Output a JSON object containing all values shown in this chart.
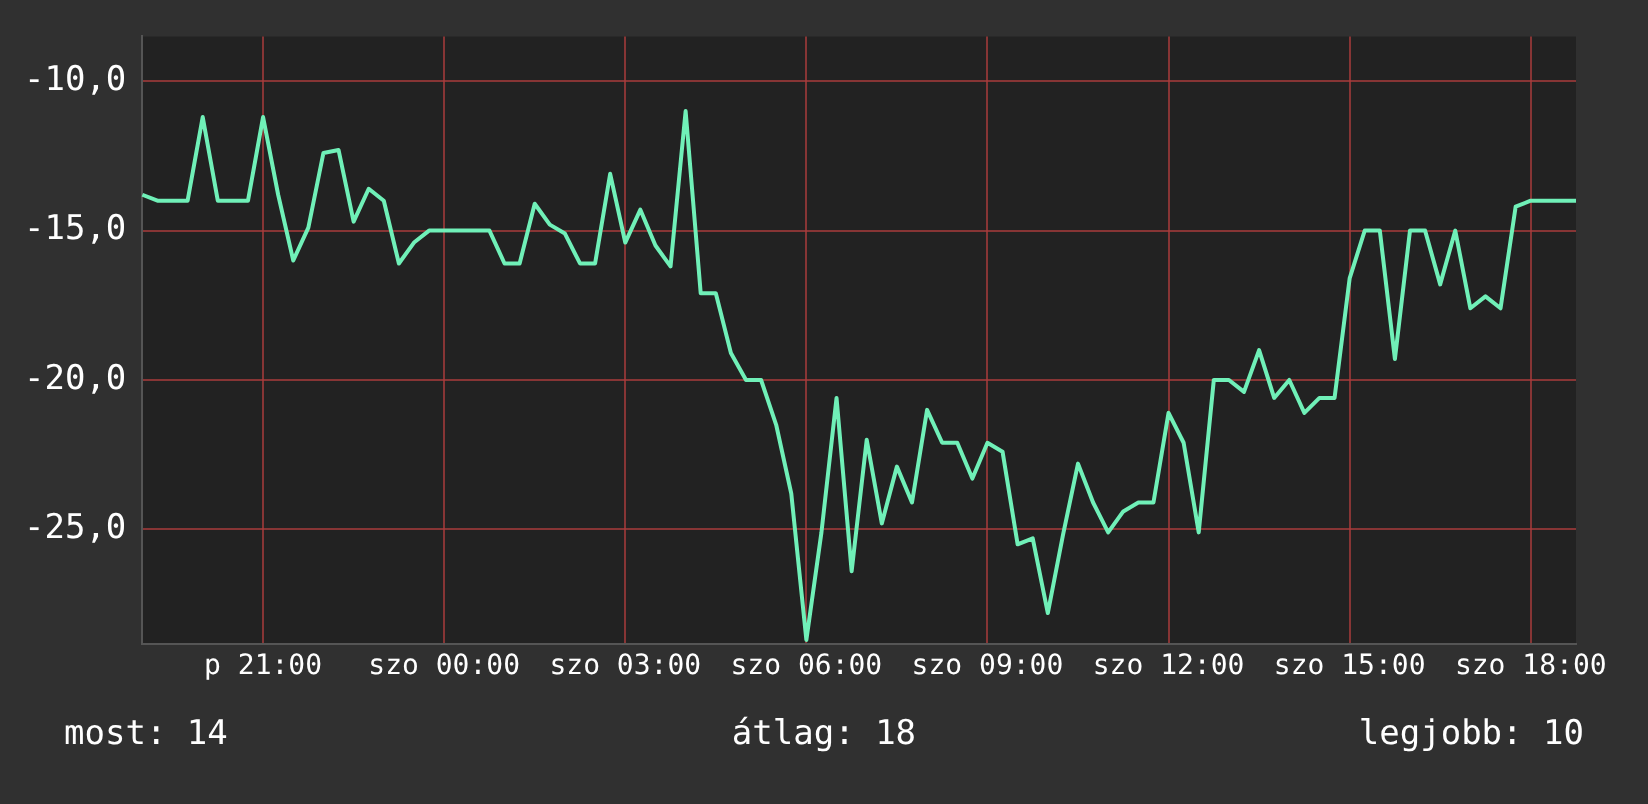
{
  "chart_data": {
    "type": "line",
    "grid": true,
    "legend": false,
    "marker": "none",
    "line_style": "solid",
    "categories": [
      null,
      null,
      null,
      null,
      null,
      null,
      null,
      null,
      "p 21:00",
      null,
      null,
      null,
      null,
      null,
      null,
      null,
      null,
      null,
      null,
      null,
      "szo 00:00",
      null,
      null,
      null,
      null,
      null,
      null,
      null,
      null,
      null,
      null,
      null,
      "szo 03:00",
      null,
      null,
      null,
      null,
      null,
      null,
      null,
      null,
      null,
      null,
      null,
      "szo 06:00",
      null,
      null,
      null,
      null,
      null,
      null,
      null,
      null,
      null,
      null,
      null,
      "szo 09:00",
      null,
      null,
      null,
      null,
      null,
      null,
      null,
      null,
      null,
      null,
      null,
      "szo 12:00",
      null,
      null,
      null,
      null,
      null,
      null,
      null,
      null,
      null,
      null,
      null,
      "szo 15:00",
      null,
      null,
      null,
      null,
      null,
      null,
      null,
      null,
      null,
      null,
      null,
      "szo 18:00",
      null,
      null,
      null
    ],
    "ylim": [
      -28.85,
      -8.5
    ],
    "yticks": [
      {
        "value": -10,
        "label": "-10,0"
      },
      {
        "value": -15,
        "label": "-15,0"
      },
      {
        "value": -20,
        "label": "-20,0"
      },
      {
        "value": -25,
        "label": "-25,0"
      }
    ],
    "annotations": [
      "most: 14",
      "átlag: 18",
      "legjobb: 10"
    ],
    "series": [
      {
        "color": "#70f0b8",
        "values": [
          -13.8,
          -14,
          -14,
          -14,
          -11.2,
          -14,
          -14,
          -14,
          -11.2,
          -13.8,
          -16,
          -14.9,
          -12.4,
          -12.3,
          -14.7,
          -13.6,
          -14,
          -16.1,
          -15.4,
          -15,
          -15,
          -15,
          -15,
          -15,
          -16.1,
          -16.1,
          -14.1,
          -14.8,
          -15.1,
          -16.1,
          -16.1,
          -13.1,
          -15.4,
          -14.3,
          -15.5,
          -16.2,
          -11,
          -17.1,
          -17.1,
          -19.1,
          -20,
          -20,
          -21.5,
          -23.8,
          -28.7,
          -25.1,
          -20.6,
          -26.4,
          -22,
          -24.8,
          -22.9,
          -24.1,
          -21,
          -22.1,
          -22.1,
          -23.3,
          -22.1,
          -22.4,
          -25.5,
          -25.3,
          -27.8,
          -25.2,
          -22.8,
          -24.1,
          -25.1,
          -24.4,
          -24.1,
          -24.1,
          -21.1,
          -22.1,
          -25.1,
          -20,
          -20,
          -20.4,
          -19,
          -20.6,
          -20,
          -21.1,
          -20.6,
          -20.6,
          -16.6,
          -15,
          -15,
          -19.3,
          -15,
          -15,
          -16.8,
          -15,
          -17.6,
          -17.2,
          -17.6,
          -14.2,
          -14,
          -14,
          -14,
          -14
        ]
      }
    ]
  }
}
